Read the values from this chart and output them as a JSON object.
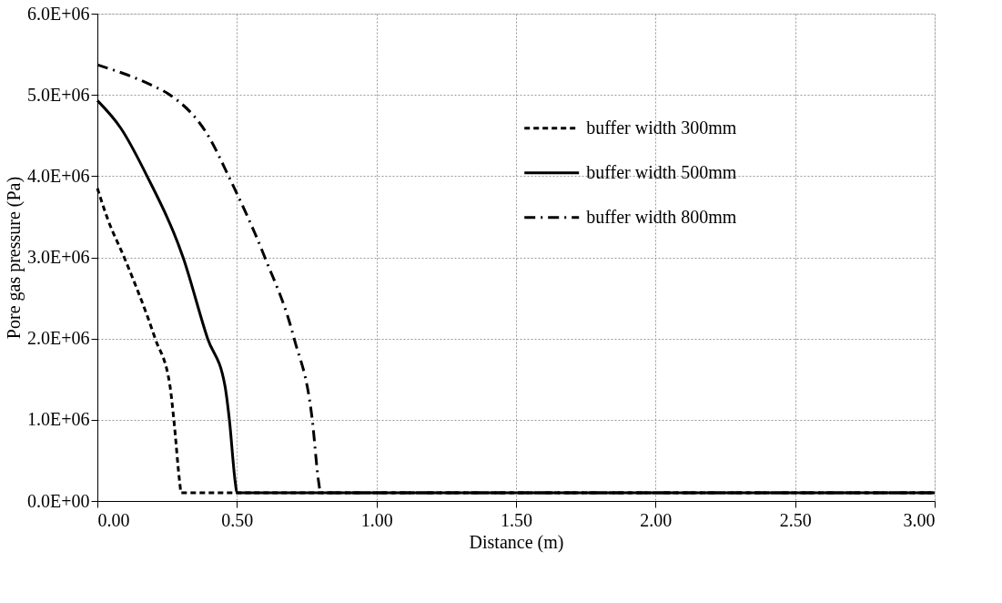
{
  "chart_data": {
    "type": "line",
    "xlabel": "Distance (m)",
    "ylabel": "Pore gas pressure (Pa)",
    "xlim": [
      0,
      3
    ],
    "ylim": [
      0,
      6000000
    ],
    "xticks": [
      {
        "value": 0,
        "label": "0.00"
      },
      {
        "value": 0.5,
        "label": "0.50"
      },
      {
        "value": 1,
        "label": "1.00"
      },
      {
        "value": 1.5,
        "label": "1.50"
      },
      {
        "value": 2,
        "label": "2.00"
      },
      {
        "value": 2.5,
        "label": "2.50"
      },
      {
        "value": 3,
        "label": "3.00"
      }
    ],
    "yticks": [
      {
        "value": 0,
        "label": "0.0E+00"
      },
      {
        "value": 1000000,
        "label": "1.0E+06"
      },
      {
        "value": 2000000,
        "label": "2.0E+06"
      },
      {
        "value": 3000000,
        "label": "3.0E+06"
      },
      {
        "value": 4000000,
        "label": "4.0E+06"
      },
      {
        "value": 5000000,
        "label": "5.0E+06"
      },
      {
        "value": 6000000,
        "label": "6.0E+06"
      }
    ],
    "grid": true,
    "legend": "right",
    "marker": "none",
    "series": [
      {
        "name": "buffer width 300mm",
        "color": "#000000",
        "line_style": "dashed",
        "x": [
          0,
          0.037,
          0.096,
          0.207,
          0.26,
          0.274,
          0.295,
          0.3,
          1,
          2,
          3
        ],
        "values": [
          3850000,
          3470000,
          3000000,
          2000000,
          1420000,
          1000000,
          230000,
          100000,
          100000,
          100000,
          100000
        ]
      },
      {
        "name": "buffer width 500mm",
        "color": "#000000",
        "line_style": "solid",
        "x": [
          0,
          0.084,
          0.178,
          0.307,
          0.395,
          0.457,
          0.473,
          0.494,
          0.5,
          1,
          2,
          3
        ],
        "values": [
          4930000,
          4590000,
          4000000,
          3000000,
          2000000,
          1420000,
          1000000,
          230000,
          100000,
          100000,
          100000,
          100000
        ]
      },
      {
        "name": "buffer width 800mm",
        "color": "#000000",
        "line_style": "dashdot",
        "x": [
          0,
          0.2,
          0.26,
          0.4,
          0.47,
          0.6,
          0.705,
          0.77,
          0.793,
          0.8,
          1,
          2,
          3
        ],
        "values": [
          5370000,
          5110000,
          5000000,
          4480000,
          4000000,
          3000000,
          2000000,
          1000000,
          230000,
          100000,
          100000,
          100000,
          100000
        ]
      }
    ]
  }
}
